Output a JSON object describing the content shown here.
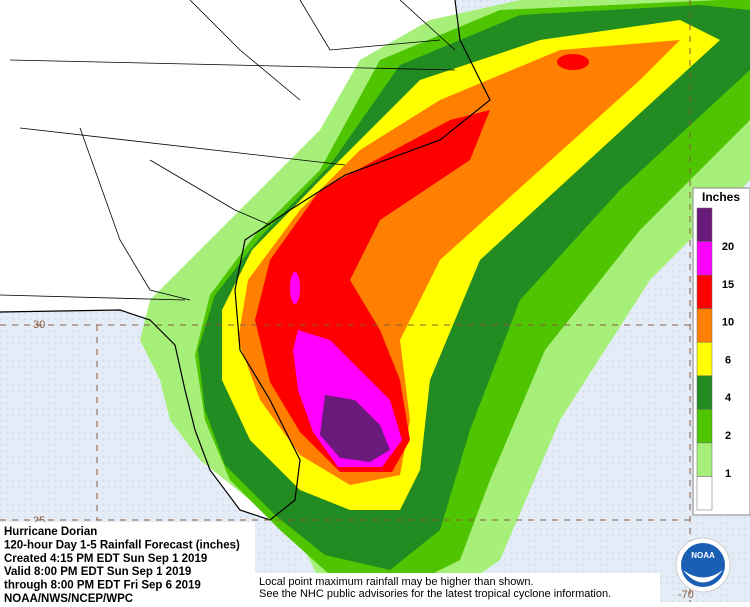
{
  "map": {
    "title_lines": [
      "Hurricane Dorian",
      "120-hour Day 1-5 Rainfall Forecast (inches)",
      "Created 4:15 PM EDT Sun Sep 1 2019",
      "Valid 8:00 PM EDT Sun Sep 1 2019",
      "through 8:00 PM EDT Fri Sep 6 2019",
      "NOAA/NWS/NCEP/WPC"
    ],
    "note_lines": [
      "Local point maximum rainfall may be higher than shown.",
      "See the NHC public advisories for the latest tropical cyclone information."
    ],
    "legend": {
      "title": "Inches",
      "colors": [
        "#6a1a7a",
        "#ff00ff",
        "#ff0000",
        "#ff8000",
        "#ffff00",
        "#228b22",
        "#4fc400",
        "#a6f07a",
        "#ffffff"
      ],
      "labels": [
        20,
        15,
        10,
        6,
        4,
        2,
        1
      ]
    },
    "lat_labels": [
      30,
      25
    ],
    "lon_labels": [
      -70
    ],
    "logo": "NOAA"
  }
}
